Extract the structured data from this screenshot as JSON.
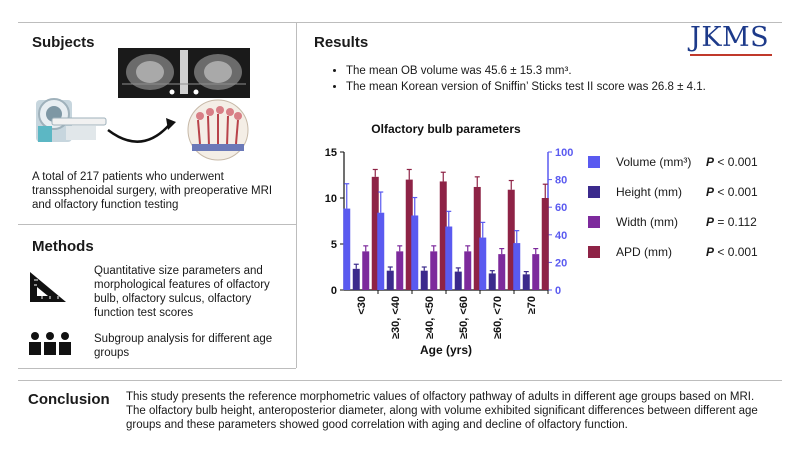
{
  "logo": {
    "text": "JKMS"
  },
  "subjects": {
    "title": "Subjects",
    "description": "A total of 217 patients who underwent transsphenoidal surgery, with preoperative MRI and olfactory function testing"
  },
  "methods": {
    "title": "Methods",
    "item1": "Quantitative size parameters and morphological features of olfactory bulb, olfactory sulcus, olfactory function test scores",
    "item2": "Subgroup analysis for different age groups"
  },
  "results": {
    "title": "Results",
    "bullets": [
      "The mean OB volume was 45.6 ± 15.3 mm³.",
      "The mean Korean version of Sniffin’ Sticks test II score was 26.8 ± 4.1."
    ]
  },
  "legend": [
    {
      "label": "Volume (mm³)",
      "p_label": "P",
      "p_value": "< 0.001",
      "color": "#5a5af0"
    },
    {
      "label": "Height (mm)",
      "p_label": "P",
      "p_value": "< 0.001",
      "color": "#3b2a8c"
    },
    {
      "label": "Width (mm)",
      "p_label": "P",
      "p_value": "= 0.112",
      "color": "#7d2a9c"
    },
    {
      "label": "APD (mm)",
      "p_label": "P",
      "p_value": "< 0.001",
      "color": "#8e2346"
    }
  ],
  "conclusion": {
    "title": "Conclusion",
    "text": "This study presents the reference morphometric values of olfactory pathway of adults in different age groups based on MRI. The olfactory bulb height, anteroposterior diameter, along with volume exhibited significant differences between different age groups and these parameters showed good correlation with aging and decline of olfactory function."
  },
  "chart_data": {
    "type": "bar",
    "title": "Olfactory bulb parameters",
    "xlabel": "Age (yrs)",
    "ylabel_left": "",
    "ylabel_right": "",
    "categories": [
      "<30",
      "≥30, <40",
      "≥40, <50",
      "≥50, <60",
      "≥60, <70",
      "≥70"
    ],
    "ylim_left": [
      0,
      15
    ],
    "yticks_left": [
      0,
      5,
      10,
      15
    ],
    "ylim_right": [
      0,
      100
    ],
    "yticks_right": [
      0,
      20,
      40,
      60,
      80,
      100
    ],
    "series": [
      {
        "name": "Volume (mm³)",
        "axis": "right",
        "values": [
          59,
          56,
          54,
          46,
          38,
          34
        ],
        "errors": [
          18,
          15,
          13,
          11,
          11,
          9
        ]
      },
      {
        "name": "Height (mm)",
        "axis": "left",
        "values": [
          2.3,
          2.1,
          2.1,
          2.0,
          1.8,
          1.7
        ],
        "errors": [
          0.5,
          0.4,
          0.4,
          0.4,
          0.3,
          0.3
        ]
      },
      {
        "name": "Width (mm)",
        "axis": "left",
        "values": [
          4.2,
          4.2,
          4.2,
          4.2,
          3.9,
          3.9
        ],
        "errors": [
          0.6,
          0.6,
          0.6,
          0.6,
          0.6,
          0.6
        ]
      },
      {
        "name": "APD (mm)",
        "axis": "left",
        "values": [
          12.3,
          12.0,
          11.8,
          11.2,
          10.9,
          10.0
        ],
        "errors": [
          0.8,
          1.1,
          1.0,
          1.1,
          1.0,
          1.5
        ]
      }
    ]
  }
}
